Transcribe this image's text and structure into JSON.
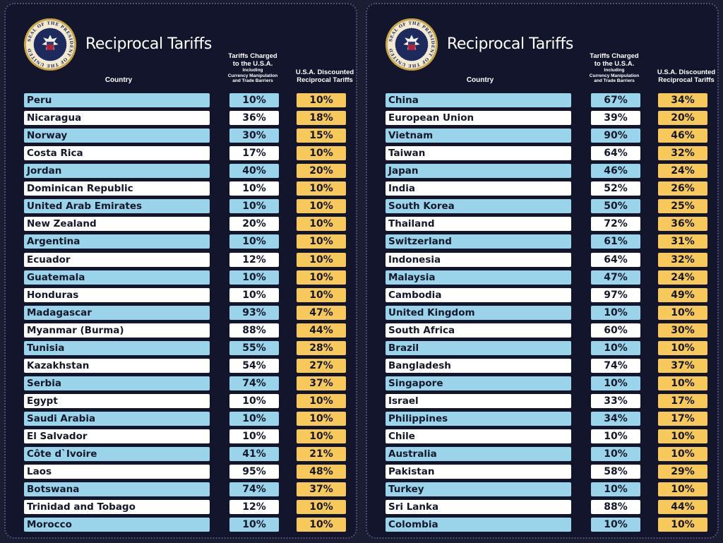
{
  "header": {
    "title": "Reciprocal Tariffs",
    "col_country": "Country",
    "col_charged_line1": "Tariffs Charged",
    "col_charged_line2": "to the U.S.A.",
    "col_charged_sub1": "Including",
    "col_charged_sub2": "Currency Manipulation",
    "col_charged_sub3": "and Trade Barriers",
    "col_disc_line1": "U.S.A. Discounted",
    "col_disc_line2": "Reciprocal Tariffs",
    "seal_text": "SEAL OF THE PRESIDENT OF THE UNITED STATES"
  },
  "colors": {
    "background": "#13152c",
    "row_blue": "#9ad4ea",
    "row_white": "#ffffff",
    "discount_gold": "#f7c85a"
  },
  "chart_data": [
    {
      "type": "table",
      "title": "Reciprocal Tariffs",
      "columns": [
        "Country",
        "Tariffs Charged to the U.S.A. Including Currency Manipulation and Trade Barriers",
        "U.S.A. Discounted Reciprocal Tariffs"
      ],
      "rows": [
        [
          "Peru",
          "10%",
          "10%"
        ],
        [
          "Nicaragua",
          "36%",
          "18%"
        ],
        [
          "Norway",
          "30%",
          "15%"
        ],
        [
          "Costa Rica",
          "17%",
          "10%"
        ],
        [
          "Jordan",
          "40%",
          "20%"
        ],
        [
          "Dominican Republic",
          "10%",
          "10%"
        ],
        [
          "United Arab Emirates",
          "10%",
          "10%"
        ],
        [
          "New Zealand",
          "20%",
          "10%"
        ],
        [
          "Argentina",
          "10%",
          "10%"
        ],
        [
          "Ecuador",
          "12%",
          "10%"
        ],
        [
          "Guatemala",
          "10%",
          "10%"
        ],
        [
          "Honduras",
          "10%",
          "10%"
        ],
        [
          "Madagascar",
          "93%",
          "47%"
        ],
        [
          "Myanmar (Burma)",
          "88%",
          "44%"
        ],
        [
          "Tunisia",
          "55%",
          "28%"
        ],
        [
          "Kazakhstan",
          "54%",
          "27%"
        ],
        [
          "Serbia",
          "74%",
          "37%"
        ],
        [
          "Egypt",
          "10%",
          "10%"
        ],
        [
          "Saudi Arabia",
          "10%",
          "10%"
        ],
        [
          "El Salvador",
          "10%",
          "10%"
        ],
        [
          "Côte d`Ivoire",
          "41%",
          "21%"
        ],
        [
          "Laos",
          "95%",
          "48%"
        ],
        [
          "Botswana",
          "74%",
          "37%"
        ],
        [
          "Trinidad and Tobago",
          "12%",
          "10%"
        ],
        [
          "Morocco",
          "10%",
          "10%"
        ]
      ]
    },
    {
      "type": "table",
      "title": "Reciprocal Tariffs",
      "columns": [
        "Country",
        "Tariffs Charged to the U.S.A. Including Currency Manipulation and Trade Barriers",
        "U.S.A. Discounted Reciprocal Tariffs"
      ],
      "rows": [
        [
          "China",
          "67%",
          "34%"
        ],
        [
          "European Union",
          "39%",
          "20%"
        ],
        [
          "Vietnam",
          "90%",
          "46%"
        ],
        [
          "Taiwan",
          "64%",
          "32%"
        ],
        [
          "Japan",
          "46%",
          "24%"
        ],
        [
          "India",
          "52%",
          "26%"
        ],
        [
          "South Korea",
          "50%",
          "25%"
        ],
        [
          "Thailand",
          "72%",
          "36%"
        ],
        [
          "Switzerland",
          "61%",
          "31%"
        ],
        [
          "Indonesia",
          "64%",
          "32%"
        ],
        [
          "Malaysia",
          "47%",
          "24%"
        ],
        [
          "Cambodia",
          "97%",
          "49%"
        ],
        [
          "United Kingdom",
          "10%",
          "10%"
        ],
        [
          "South Africa",
          "60%",
          "30%"
        ],
        [
          "Brazil",
          "10%",
          "10%"
        ],
        [
          "Bangladesh",
          "74%",
          "37%"
        ],
        [
          "Singapore",
          "10%",
          "10%"
        ],
        [
          "Israel",
          "33%",
          "17%"
        ],
        [
          "Philippines",
          "34%",
          "17%"
        ],
        [
          "Chile",
          "10%",
          "10%"
        ],
        [
          "Australia",
          "10%",
          "10%"
        ],
        [
          "Pakistan",
          "58%",
          "29%"
        ],
        [
          "Turkey",
          "10%",
          "10%"
        ],
        [
          "Sri Lanka",
          "88%",
          "44%"
        ],
        [
          "Colombia",
          "10%",
          "10%"
        ]
      ]
    }
  ]
}
